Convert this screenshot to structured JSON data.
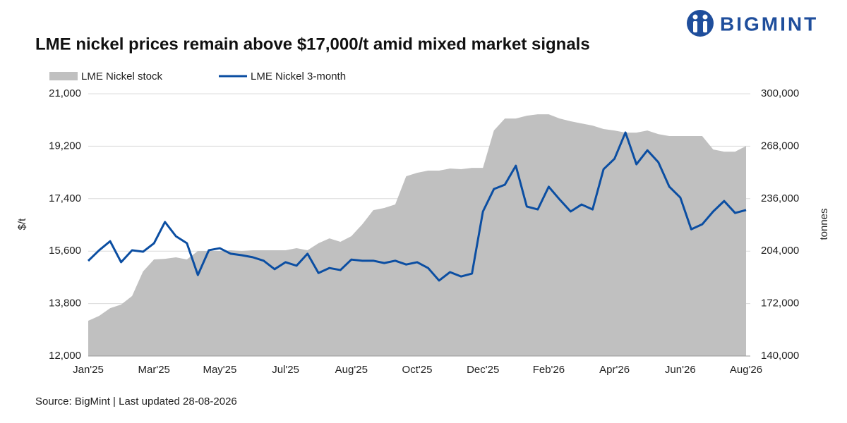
{
  "logo": "BIGMINT",
  "chart_data": {
    "type": "area-line",
    "title": "LME nickel prices remain above $17,000/t amid mixed market signals",
    "source": "Source: BigMint | Last updated 28-08-2026",
    "ylabel": "$/t",
    "y2label": "tonnes",
    "grid": true,
    "legend": "top-left",
    "categories": [
      "Jan'25",
      null,
      null,
      null,
      null,
      null,
      "Mar'25",
      null,
      null,
      null,
      null,
      null,
      "May'25",
      null,
      null,
      null,
      null,
      null,
      "Jul'25",
      null,
      null,
      null,
      null,
      null,
      "Aug'25",
      null,
      null,
      null,
      null,
      null,
      "Oct'25",
      null,
      null,
      null,
      null,
      null,
      "Dec'25",
      null,
      null,
      null,
      null,
      null,
      "Feb'26",
      null,
      null,
      null,
      null,
      null,
      "Apr'26",
      null,
      null,
      null,
      null,
      null,
      "Jun'26",
      null,
      null,
      null,
      null,
      null,
      "Aug'26"
    ],
    "ylim": [
      12000,
      21000
    ],
    "yticks": [
      {
        "value": 12000,
        "label": "12,000"
      },
      {
        "value": 13800,
        "label": "13,800"
      },
      {
        "value": 15600,
        "label": "15,600"
      },
      {
        "value": 17400,
        "label": "17,400"
      },
      {
        "value": 19200,
        "label": "19,200"
      },
      {
        "value": 21000,
        "label": "21,000"
      }
    ],
    "y2lim": [
      140000,
      300000
    ],
    "y2ticks": [
      {
        "value": 140000,
        "label": "140,000"
      },
      {
        "value": 172000,
        "label": "172,000"
      },
      {
        "value": 204000,
        "label": "204,000"
      },
      {
        "value": 236000,
        "label": "236,000"
      },
      {
        "value": 268000,
        "label": "268,000"
      },
      {
        "value": 300000,
        "label": "300,000"
      }
    ],
    "series": [
      {
        "name": "LME Nickel stock",
        "kind": "area",
        "axis": "y2",
        "color": "#c0c0c0",
        "values": [
          161500,
          164500,
          169200,
          171400,
          176600,
          191600,
          198900,
          199300,
          200200,
          198900,
          204100,
          204100,
          204100,
          204500,
          204100,
          204500,
          204500,
          204500,
          204500,
          205800,
          204500,
          208800,
          211800,
          209700,
          213100,
          220400,
          229000,
          230300,
          232500,
          249700,
          251800,
          253100,
          253100,
          254400,
          254000,
          254800,
          254800,
          277600,
          284900,
          284900,
          286600,
          287500,
          287500,
          284900,
          283200,
          281900,
          280600,
          278500,
          277600,
          276300,
          276300,
          277600,
          275400,
          274200,
          274200,
          274200,
          274200,
          266000,
          264700,
          264700,
          268100
        ]
      },
      {
        "name": "LME Nickel 3-month",
        "kind": "line",
        "axis": "y",
        "color": "#0b4ea2",
        "values": [
          15266,
          15630,
          15940,
          15220,
          15630,
          15580,
          15870,
          16600,
          16110,
          15870,
          14780,
          15630,
          15700,
          15510,
          15460,
          15390,
          15270,
          14980,
          15220,
          15100,
          15510,
          14850,
          15020,
          14950,
          15310,
          15270,
          15270,
          15190,
          15270,
          15140,
          15220,
          15020,
          14590,
          14880,
          14730,
          14830,
          16960,
          17730,
          17880,
          18530,
          17130,
          17030,
          17810,
          17370,
          16960,
          17200,
          17030,
          18410,
          18770,
          19670,
          18580,
          19060,
          18650,
          17810,
          17440,
          16350,
          16520,
          16960,
          17320,
          16910,
          17010
        ]
      }
    ]
  }
}
